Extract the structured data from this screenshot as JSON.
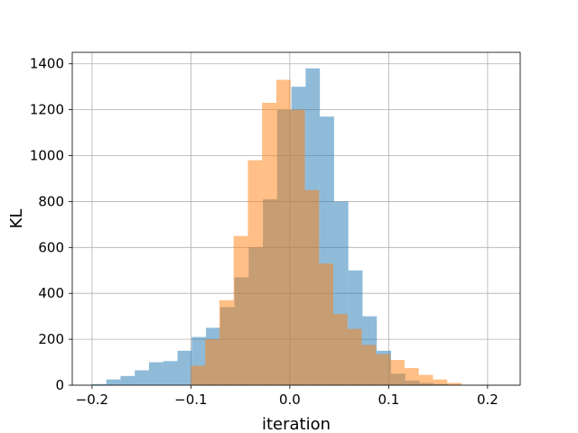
{
  "chart_data": {
    "type": "bar",
    "subtype": "overlapping-histogram",
    "title": "",
    "xlabel": "iteration",
    "ylabel": "KL",
    "xlim": [
      -0.22,
      0.233
    ],
    "ylim": [
      0,
      1450
    ],
    "xticks": [
      -0.2,
      -0.1,
      0.0,
      0.1,
      0.2
    ],
    "xtick_labels": [
      "−0.2",
      "−0.1",
      "0.0",
      "0.1",
      "0.2"
    ],
    "yticks": [
      0,
      200,
      400,
      600,
      800,
      1000,
      1200,
      1400
    ],
    "ytick_labels": [
      "0",
      "200",
      "400",
      "600",
      "800",
      "1000",
      "1200",
      "1400"
    ],
    "grid": true,
    "legend": "none",
    "series": [
      {
        "color": "#1f77b4",
        "opacity": 0.5,
        "bin_start": -0.2,
        "bin_width": 0.0144,
        "values": [
          5,
          25,
          40,
          65,
          100,
          105,
          150,
          210,
          250,
          340,
          470,
          600,
          810,
          1200,
          1300,
          1380,
          1170,
          800,
          500,
          300,
          150,
          50,
          20,
          10,
          5,
          2,
          1,
          1,
          0,
          0
        ]
      },
      {
        "color": "#ff7f0e",
        "opacity": 0.5,
        "bin_start": -0.1,
        "bin_width": 0.0144,
        "values": [
          85,
          200,
          370,
          650,
          980,
          1230,
          1330,
          1200,
          850,
          530,
          310,
          245,
          175,
          135,
          110,
          75,
          45,
          25,
          10
        ]
      }
    ]
  }
}
